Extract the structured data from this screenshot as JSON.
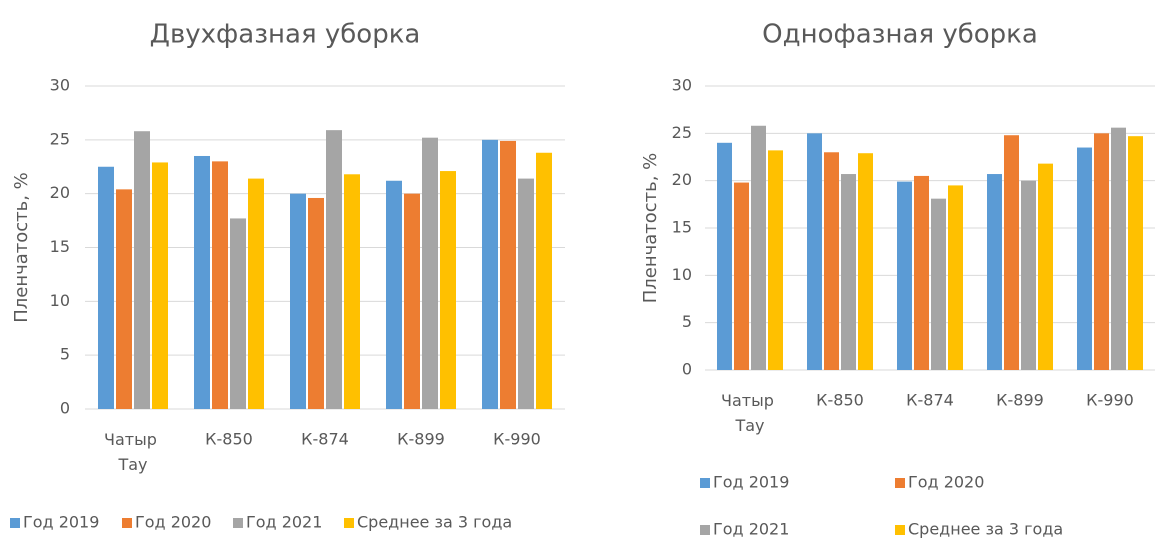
{
  "chart_data": [
    {
      "type": "bar",
      "title": "Двухфазная уборка",
      "ylabel": "Пленчатость, %",
      "categories": [
        "Чатыр Тау",
        "К-850",
        "К-874",
        "К-899",
        "К-990"
      ],
      "series": [
        {
          "name": "Год 2019",
          "color": "#5b9bd5",
          "values": [
            22.5,
            23.5,
            20.0,
            21.2,
            25.0
          ]
        },
        {
          "name": "Год 2020",
          "color": "#ed7d31",
          "values": [
            20.4,
            23.0,
            19.6,
            20.0,
            24.9
          ]
        },
        {
          "name": "Год 2021",
          "color": "#a5a5a5",
          "values": [
            25.8,
            17.7,
            25.9,
            25.2,
            21.4
          ]
        },
        {
          "name": "Среднее за 3 года",
          "color": "#ffc000",
          "values": [
            22.9,
            21.4,
            21.8,
            22.1,
            23.8
          ]
        }
      ],
      "ylim": [
        0,
        30
      ],
      "yticks": [
        0,
        5,
        10,
        15,
        20,
        25,
        30
      ],
      "grid": true,
      "legend": "bottom"
    },
    {
      "type": "bar",
      "title": "Однофазная уборка",
      "ylabel": "Пленчатость, %",
      "categories": [
        "Чатыр Тау",
        "К-850",
        "К-874",
        "К-899",
        "К-990"
      ],
      "series": [
        {
          "name": "Год 2019",
          "color": "#5b9bd5",
          "values": [
            24.0,
            25.0,
            19.9,
            20.7,
            23.5
          ]
        },
        {
          "name": "Год 2020",
          "color": "#ed7d31",
          "values": [
            19.8,
            23.0,
            20.5,
            24.8,
            25.0
          ]
        },
        {
          "name": "Год 2021",
          "color": "#a5a5a5",
          "values": [
            25.8,
            20.7,
            18.1,
            20.0,
            25.6
          ]
        },
        {
          "name": "Среднее за 3 года",
          "color": "#ffc000",
          "values": [
            23.2,
            22.9,
            19.5,
            21.8,
            24.7
          ]
        }
      ],
      "ylim": [
        0,
        30
      ],
      "yticks": [
        0,
        5,
        10,
        15,
        20,
        25,
        30
      ],
      "grid": true,
      "legend": "bottom"
    }
  ]
}
